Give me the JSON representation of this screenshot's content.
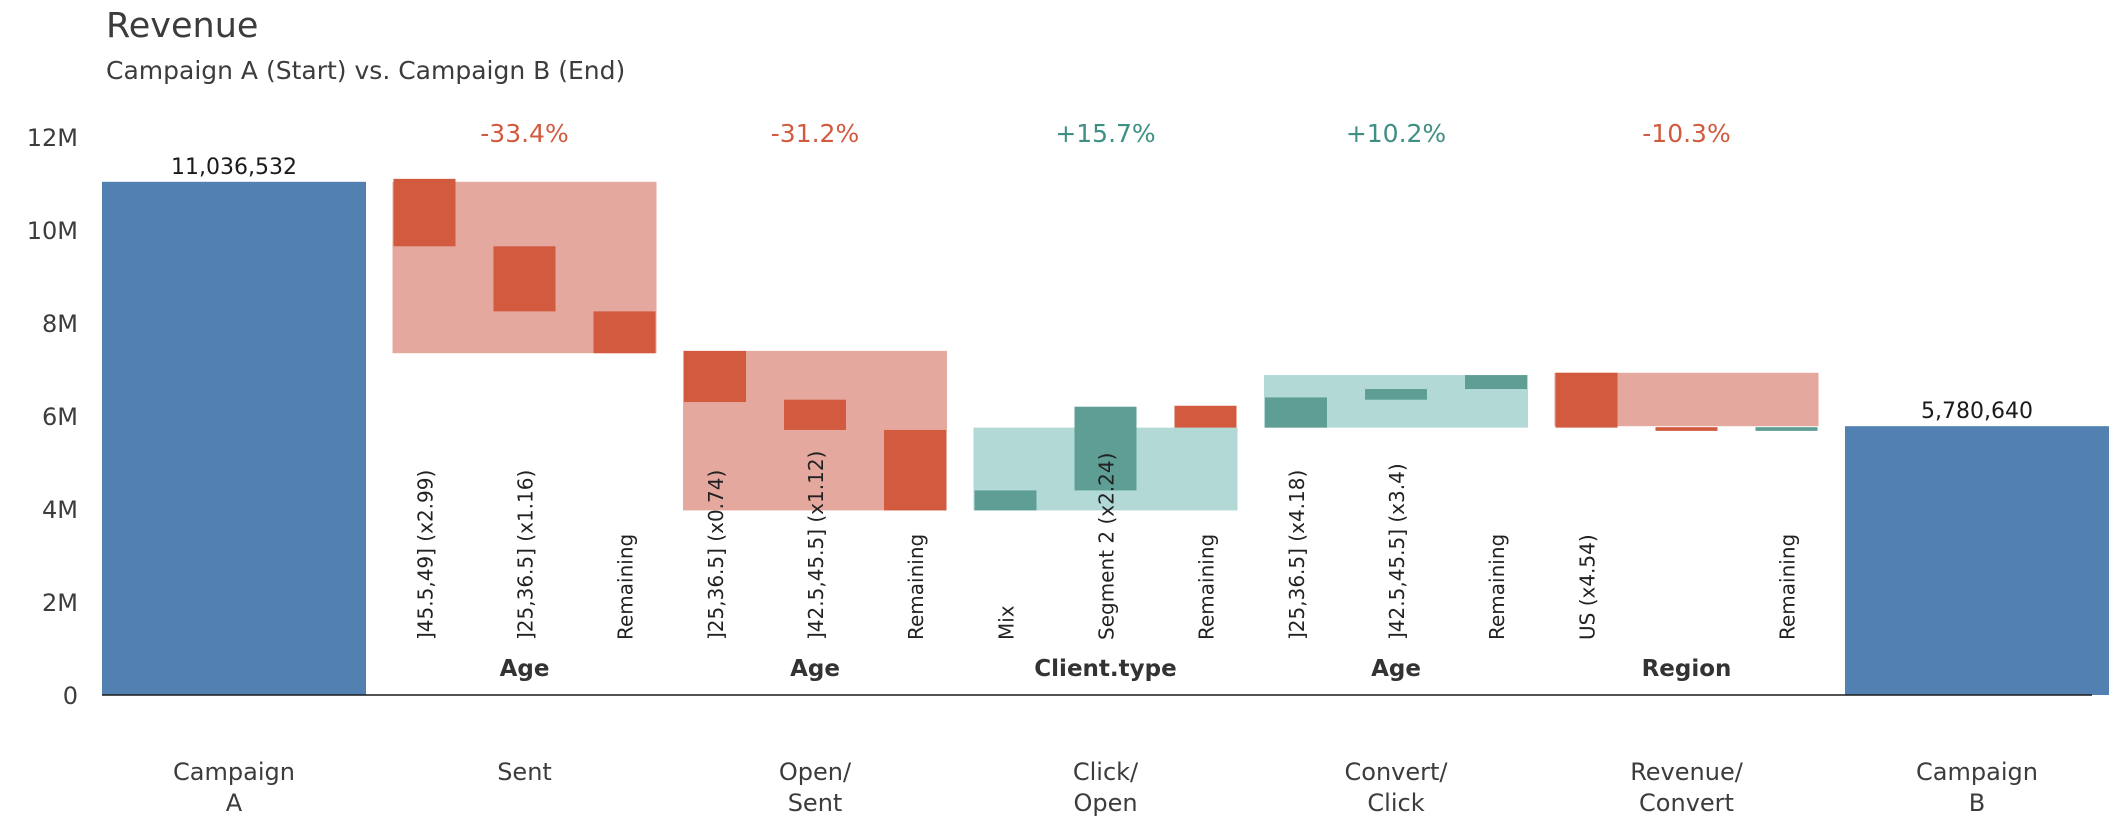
{
  "chart_data": {
    "type": "waterfall",
    "title": "Revenue",
    "subtitle": "Campaign A (Start) vs. Campaign B (End)",
    "ylim": [
      0,
      12000000
    ],
    "yticks": [
      {
        "value": 0,
        "label": "0"
      },
      {
        "value": 2000000,
        "label": "2M"
      },
      {
        "value": 4000000,
        "label": "4M"
      },
      {
        "value": 6000000,
        "label": "6M"
      },
      {
        "value": 8000000,
        "label": "8M"
      },
      {
        "value": 10000000,
        "label": "10M"
      },
      {
        "value": 12000000,
        "label": "12M"
      }
    ],
    "colors": {
      "total": "#5280b1",
      "negative_box": "#e5a89e",
      "negative_bar": "#d15a3f",
      "positive_box": "#b2d9d6",
      "positive_bar": "#5e9e95",
      "negative_text": "#d15a3f",
      "positive_text": "#3f8f84"
    },
    "start": {
      "label_lines": [
        "Campaign",
        "A"
      ],
      "value": 11036532,
      "value_label": "11,036,532"
    },
    "end": {
      "label_lines": [
        "Campaign",
        "B"
      ],
      "value": 5780640,
      "value_label": "5,780,640"
    },
    "steps": [
      {
        "label_lines": [
          "Sent"
        ],
        "change": "-33.4%",
        "direction": "negative",
        "from": 11036532,
        "to": 7350000,
        "group": "Age",
        "segments": [
          {
            "label": "]45.5,49] (x2.99)",
            "low": 9650000,
            "high": 11100000,
            "direction": "negative"
          },
          {
            "label": "]25,36.5] (x1.16)",
            "low": 8250000,
            "high": 9650000,
            "direction": "negative"
          },
          {
            "label": "Remaining",
            "low": 7350000,
            "high": 8250000,
            "direction": "negative"
          }
        ]
      },
      {
        "label_lines": [
          "Open/",
          "Sent"
        ],
        "change": "-31.2%",
        "direction": "negative",
        "from": 7400000,
        "to": 3970000,
        "group": "Age",
        "segments": [
          {
            "label": "]25,36.5] (x0.74)",
            "low": 6300000,
            "high": 7400000,
            "direction": "negative"
          },
          {
            "label": "]42.5,45.5] (x1.12)",
            "low": 5700000,
            "high": 6350000,
            "direction": "negative"
          },
          {
            "label": "Remaining",
            "low": 3970000,
            "high": 5700000,
            "direction": "negative"
          }
        ]
      },
      {
        "label_lines": [
          "Click/",
          "Open"
        ],
        "change": "+15.7%",
        "direction": "positive",
        "from": 3970000,
        "to": 5750000,
        "group": "Client.type",
        "segments": [
          {
            "label": "Mix",
            "low": 3970000,
            "high": 4400000,
            "direction": "positive"
          },
          {
            "label": "Segment 2 (x2.24)",
            "low": 4400000,
            "high": 6200000,
            "direction": "positive"
          },
          {
            "label": "Remaining",
            "low": 5750000,
            "high": 6220000,
            "direction": "negative"
          }
        ]
      },
      {
        "label_lines": [
          "Convert/",
          "Click"
        ],
        "change": "+10.2%",
        "direction": "positive",
        "from": 5750000,
        "to": 6880000,
        "group": "Age",
        "segments": [
          {
            "label": "]25,36.5] (x4.18)",
            "low": 5750000,
            "high": 6400000,
            "direction": "positive"
          },
          {
            "label": "]42.5,45.5] (x3.4)",
            "low": 6350000,
            "high": 6580000,
            "direction": "positive"
          },
          {
            "label": "Remaining",
            "low": 6580000,
            "high": 6880000,
            "direction": "positive"
          }
        ]
      },
      {
        "label_lines": [
          "Revenue/",
          "Convert"
        ],
        "change": "-10.3%",
        "direction": "negative",
        "from": 6930000,
        "to": 5780640,
        "group": "Region",
        "segments": [
          {
            "label": "US (x4.54)",
            "low": 5750000,
            "high": 6930000,
            "direction": "negative"
          },
          {
            "label": "",
            "low": 5680000,
            "high": 5760000,
            "direction": "negative"
          },
          {
            "label": "Remaining",
            "low": 5680000,
            "high": 5760000,
            "direction": "positive"
          }
        ]
      }
    ]
  }
}
